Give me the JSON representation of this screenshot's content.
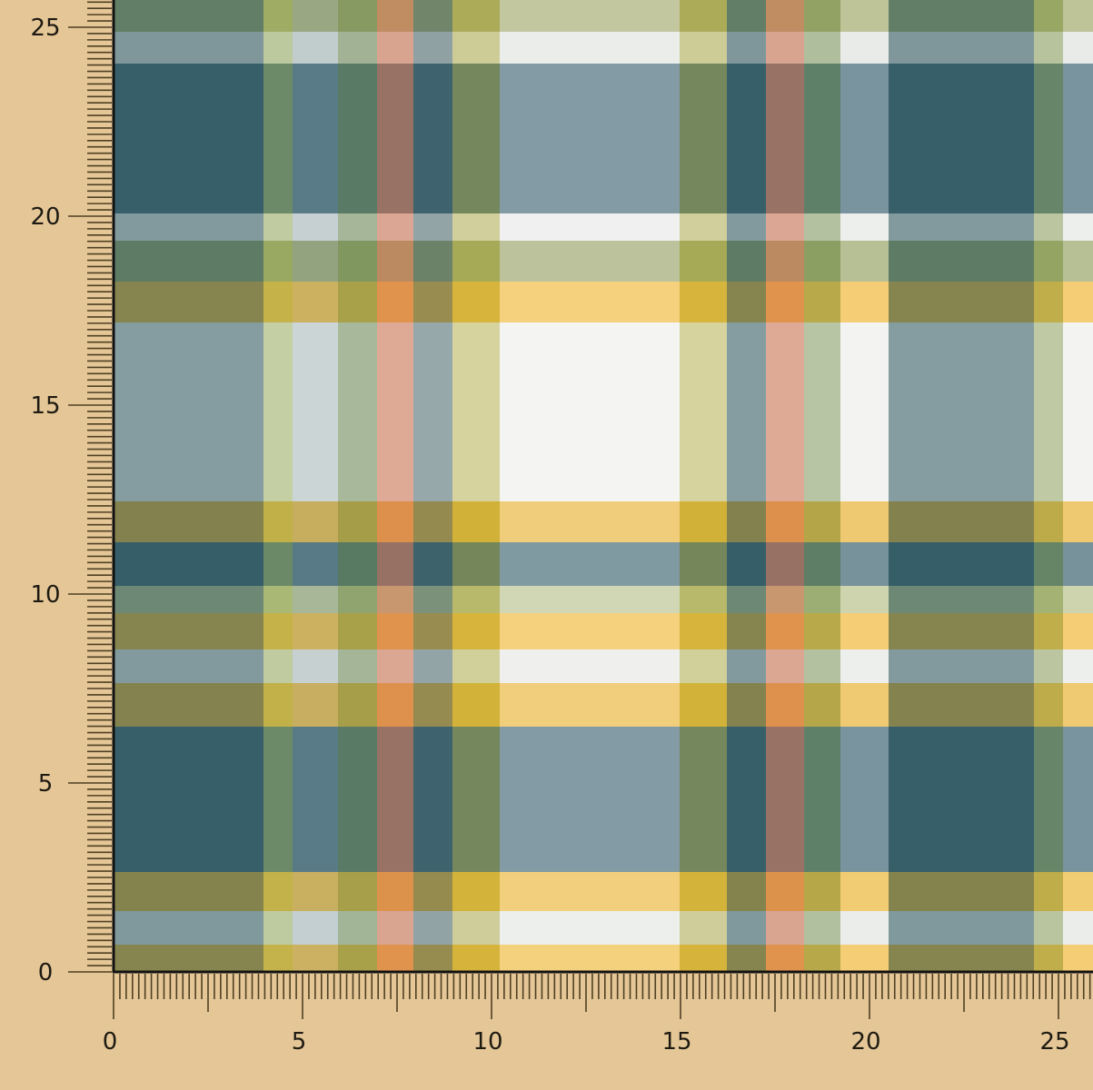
{
  "rulers": {
    "x_labels": [
      "0",
      "5",
      "10",
      "15",
      "20",
      "25"
    ],
    "y_labels": [
      "0",
      "5",
      "10",
      "15",
      "20",
      "25"
    ],
    "subdivisions_per_unit": 6
  },
  "colors": {
    "background": "#e5c797",
    "ruler_ticks": "#4f3f22",
    "fabric_dark_teal": "#2f5a62",
    "fabric_slate_blue": "#7f98a6",
    "fabric_yellow": "#f0b838",
    "fabric_green": "#8b9e5c",
    "fabric_salmon": "#d47a5c",
    "fabric_white": "#f7f4ea"
  }
}
